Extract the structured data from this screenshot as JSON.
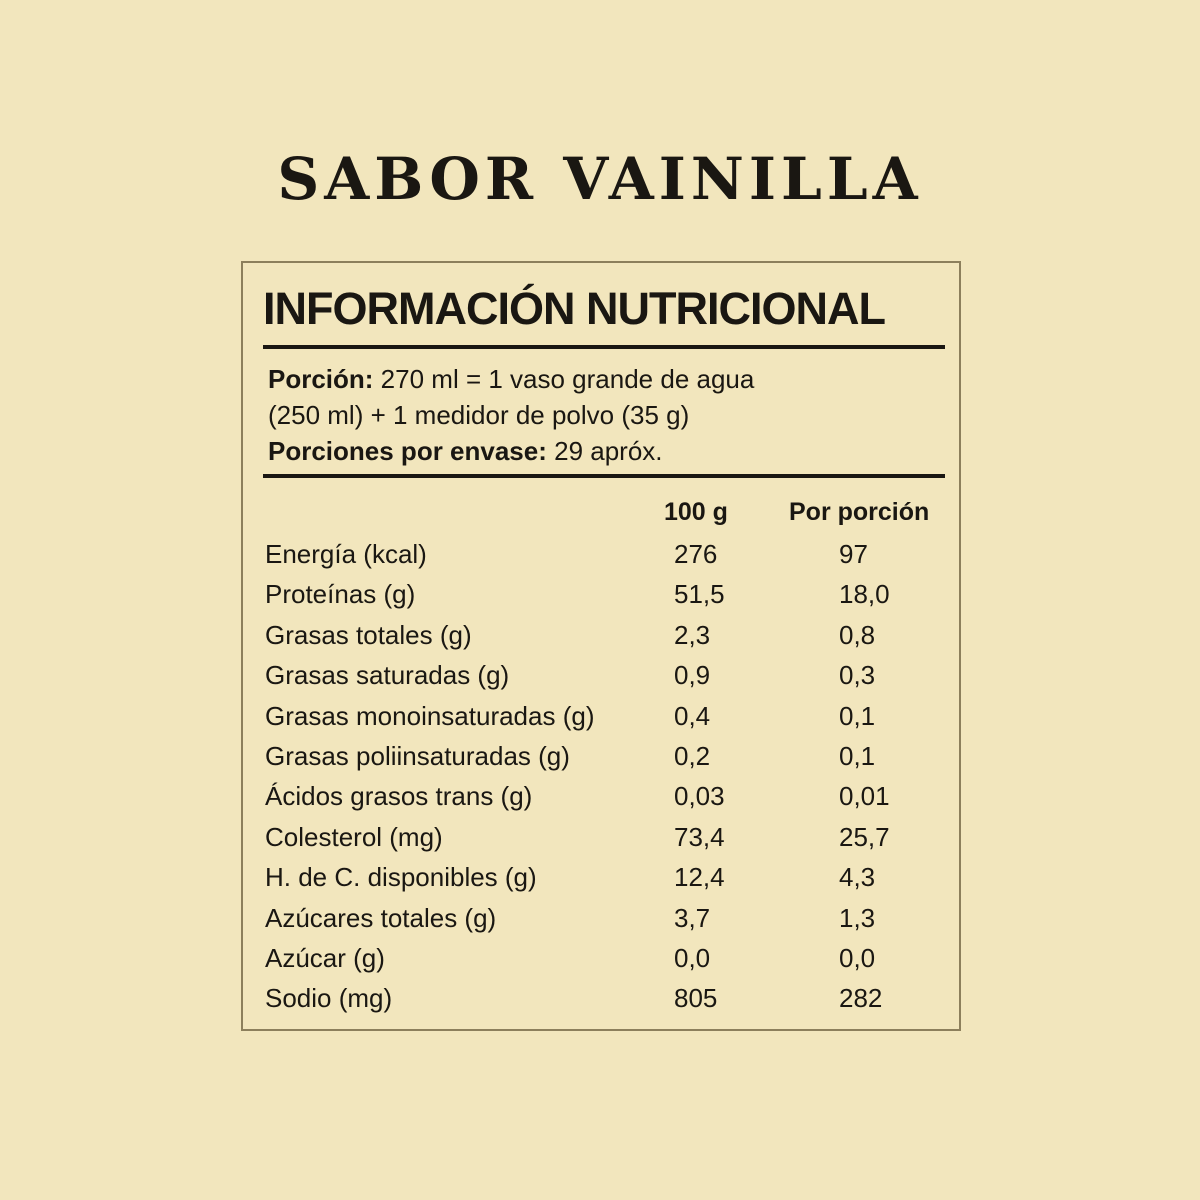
{
  "title": "SABOR VAINILLA",
  "label": {
    "heading": "INFORMACIÓN NUTRICIONAL",
    "portion_label": "Porción:",
    "portion_value": " 270 ml = 1 vaso grande de agua",
    "portion_value_2": "(250 ml) + 1 medidor de polvo (35 g)",
    "servings_label": "Porciones por envase:",
    "servings_value": " 29apróx.",
    "columns": [
      "100 g",
      "Por porción"
    ],
    "rows": [
      {
        "name": "Energía (kcal)",
        "per100": "276",
        "perServing": "97"
      },
      {
        "name": "Proteínas (g)",
        "per100": "51,5",
        "perServing": "18,0"
      },
      {
        "name": "Grasas totales (g)",
        "per100": "2,3",
        "perServing": "0,8"
      },
      {
        "name": "Grasas saturadas (g)",
        "per100": "0,9",
        "perServing": "0,3"
      },
      {
        "name": "Grasas monoinsaturadas (g)",
        "per100": "0,4",
        "perServing": "0,1"
      },
      {
        "name": "Grasas poliinsaturadas (g)",
        "per100": "0,2",
        "perServing": "0,1"
      },
      {
        "name": "Ácidos grasos trans (g)",
        "per100": "0,03",
        "perServing": "0,01"
      },
      {
        "name": "Colesterol (mg)",
        "per100": "73,4",
        "perServing": "25,7"
      },
      {
        "name": "H. de C. disponibles (g)",
        "per100": "12,4",
        "perServing": "4,3"
      },
      {
        "name": "Azúcares totales (g)",
        "per100": "3,7",
        "perServing": "1,3"
      },
      {
        "name": "Azúcar (g)",
        "per100": "0,0",
        "perServing": "0,0"
      },
      {
        "name": "Sodio (mg)",
        "per100": "805",
        "perServing": "282"
      }
    ]
  }
}
